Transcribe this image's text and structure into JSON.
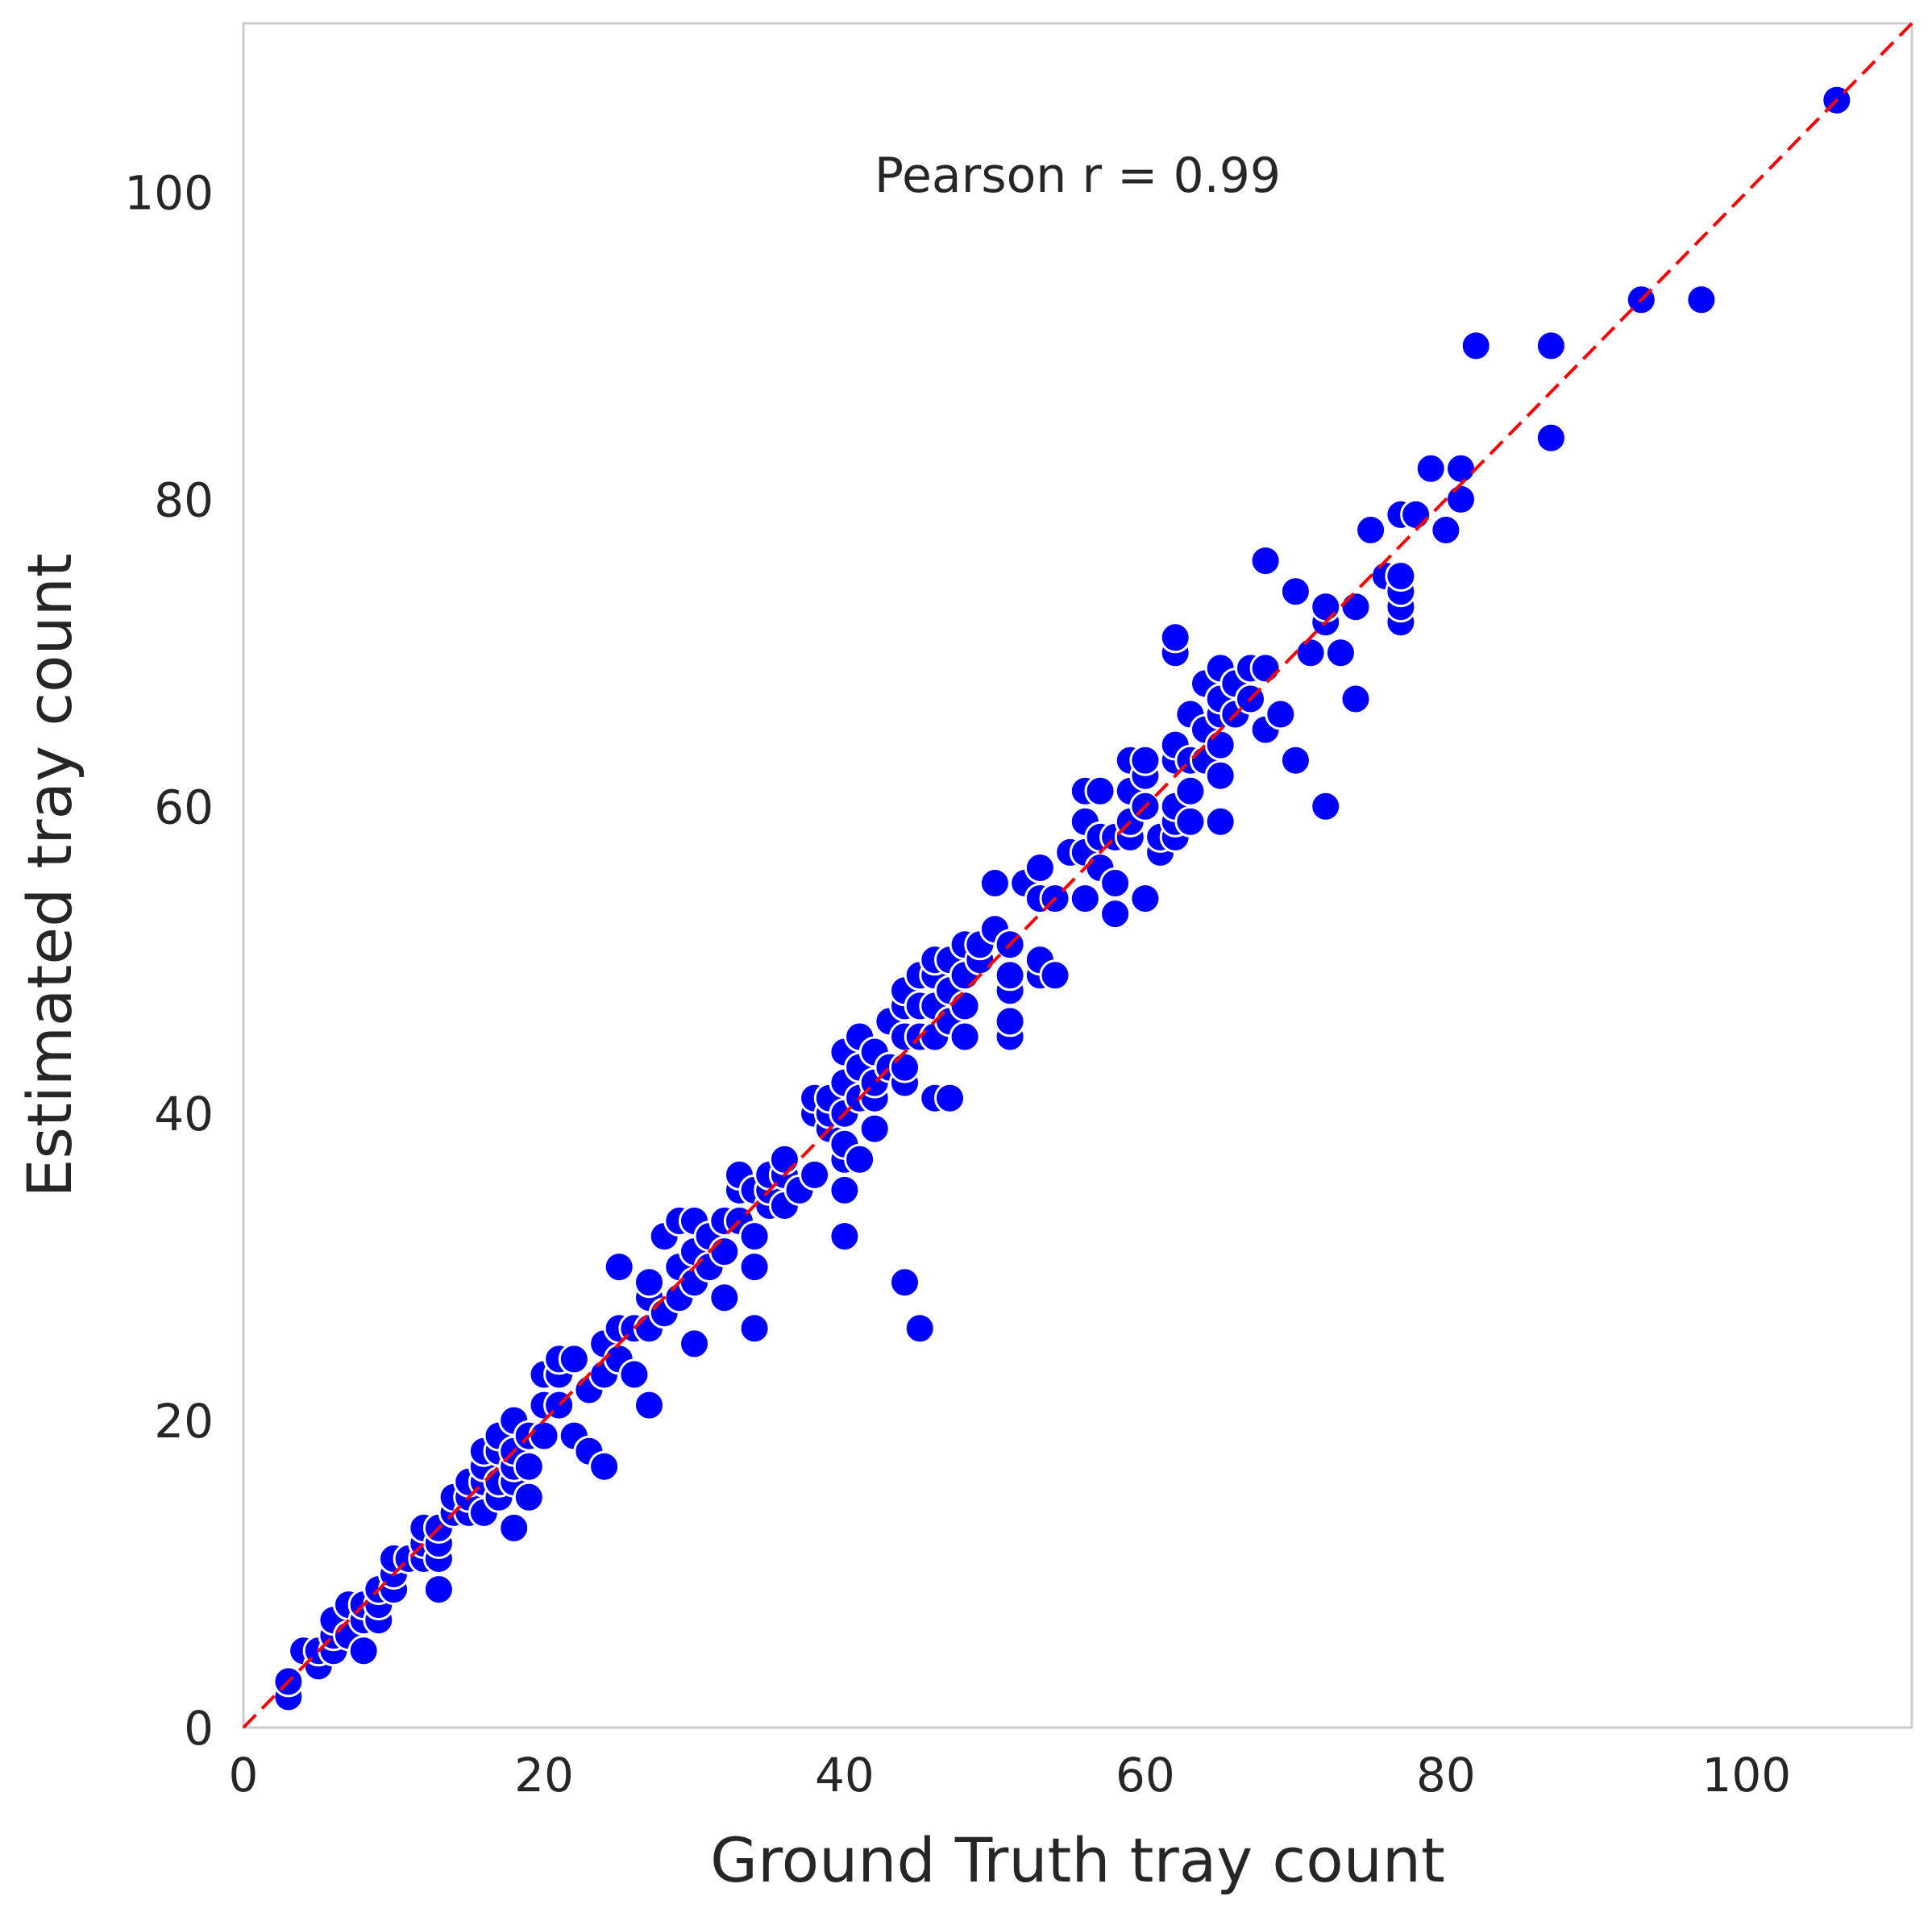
{
  "chart_data": {
    "type": "scatter",
    "xlabel": "Ground Truth tray count",
    "ylabel": "Estimated tray count",
    "annotation": "Pearson r = 0.99",
    "xlim": [
      0,
      111
    ],
    "ylim": [
      0,
      111
    ],
    "xticks": [
      0,
      20,
      40,
      60,
      80,
      100
    ],
    "yticks": [
      0,
      20,
      40,
      60,
      80,
      100
    ],
    "grid": false,
    "colors": {
      "points": "#0000ff",
      "point_edge": "#ffffff",
      "reference_line": "#ff0000",
      "frame": "#cccccc"
    },
    "reference_line": {
      "style": "dashed",
      "from": [
        0,
        0
      ],
      "to": [
        111,
        111
      ]
    },
    "series": [
      {
        "points": [
          [
            3,
            2
          ],
          [
            3,
            3
          ],
          [
            4,
            5
          ],
          [
            5,
            4
          ],
          [
            5,
            5
          ],
          [
            6,
            5
          ],
          [
            6,
            6
          ],
          [
            6,
            7
          ],
          [
            7,
            6
          ],
          [
            7,
            8
          ],
          [
            8,
            5
          ],
          [
            8,
            7
          ],
          [
            8,
            8
          ],
          [
            9,
            7
          ],
          [
            9,
            8
          ],
          [
            9,
            9
          ],
          [
            10,
            9
          ],
          [
            10,
            10
          ],
          [
            10,
            11
          ],
          [
            11,
            11
          ],
          [
            12,
            11
          ],
          [
            12,
            12
          ],
          [
            12,
            13
          ],
          [
            13,
            9
          ],
          [
            13,
            11
          ],
          [
            13,
            12
          ],
          [
            13,
            13
          ],
          [
            14,
            14
          ],
          [
            14,
            15
          ],
          [
            15,
            14
          ],
          [
            15,
            15
          ],
          [
            15,
            16
          ],
          [
            16,
            14
          ],
          [
            16,
            16
          ],
          [
            16,
            17
          ],
          [
            16,
            18
          ],
          [
            17,
            15
          ],
          [
            17,
            16
          ],
          [
            17,
            18
          ],
          [
            17,
            19
          ],
          [
            18,
            13
          ],
          [
            18,
            16
          ],
          [
            18,
            17
          ],
          [
            18,
            18
          ],
          [
            18,
            20
          ],
          [
            19,
            15
          ],
          [
            19,
            17
          ],
          [
            19,
            19
          ],
          [
            20,
            19
          ],
          [
            20,
            21
          ],
          [
            20,
            23
          ],
          [
            21,
            21
          ],
          [
            21,
            23
          ],
          [
            21,
            24
          ],
          [
            22,
            19
          ],
          [
            22,
            24
          ],
          [
            23,
            18
          ],
          [
            23,
            22
          ],
          [
            24,
            17
          ],
          [
            24,
            23
          ],
          [
            24,
            25
          ],
          [
            25,
            24
          ],
          [
            25,
            26
          ],
          [
            25,
            30
          ],
          [
            26,
            23
          ],
          [
            26,
            26
          ],
          [
            27,
            21
          ],
          [
            27,
            26
          ],
          [
            27,
            28
          ],
          [
            27,
            29
          ],
          [
            28,
            27
          ],
          [
            28,
            32
          ],
          [
            29,
            28
          ],
          [
            29,
            30
          ],
          [
            29,
            33
          ],
          [
            30,
            25
          ],
          [
            30,
            29
          ],
          [
            30,
            31
          ],
          [
            30,
            33
          ],
          [
            31,
            30
          ],
          [
            31,
            32
          ],
          [
            32,
            28
          ],
          [
            32,
            31
          ],
          [
            32,
            33
          ],
          [
            33,
            33
          ],
          [
            33,
            35
          ],
          [
            33,
            36
          ],
          [
            34,
            26
          ],
          [
            34,
            30
          ],
          [
            34,
            32
          ],
          [
            34,
            35
          ],
          [
            35,
            34
          ],
          [
            35,
            35
          ],
          [
            35,
            36
          ],
          [
            36,
            34
          ],
          [
            36,
            36
          ],
          [
            36,
            37
          ],
          [
            37,
            35
          ],
          [
            38,
            36
          ],
          [
            38,
            40
          ],
          [
            38,
            41
          ],
          [
            39,
            39
          ],
          [
            39,
            40
          ],
          [
            39,
            41
          ],
          [
            40,
            32
          ],
          [
            40,
            35
          ],
          [
            40,
            37
          ],
          [
            40,
            38
          ],
          [
            40,
            40
          ],
          [
            40,
            42
          ],
          [
            40,
            44
          ],
          [
            41,
            37
          ],
          [
            41,
            41
          ],
          [
            41,
            43
          ],
          [
            41,
            45
          ],
          [
            42,
            39
          ],
          [
            42,
            41
          ],
          [
            42,
            42
          ],
          [
            42,
            44
          ],
          [
            43,
            43
          ],
          [
            43,
            46
          ],
          [
            44,
            29
          ],
          [
            44,
            42
          ],
          [
            44,
            43
          ],
          [
            44,
            45
          ],
          [
            44,
            47
          ],
          [
            44,
            48
          ],
          [
            45,
            26
          ],
          [
            45,
            45
          ],
          [
            45,
            47
          ],
          [
            45,
            49
          ],
          [
            46,
            41
          ],
          [
            46,
            45
          ],
          [
            46,
            47
          ],
          [
            46,
            49
          ],
          [
            46,
            50
          ],
          [
            47,
            41
          ],
          [
            47,
            46
          ],
          [
            47,
            48
          ],
          [
            47,
            50
          ],
          [
            48,
            45
          ],
          [
            48,
            47
          ],
          [
            48,
            49
          ],
          [
            48,
            51
          ],
          [
            49,
            50
          ],
          [
            49,
            51
          ],
          [
            50,
            52
          ],
          [
            50,
            55
          ],
          [
            51,
            45
          ],
          [
            51,
            46
          ],
          [
            51,
            48
          ],
          [
            51,
            49
          ],
          [
            51,
            51
          ],
          [
            52,
            55
          ],
          [
            53,
            49
          ],
          [
            53,
            50
          ],
          [
            53,
            54
          ],
          [
            53,
            56
          ],
          [
            54,
            49
          ],
          [
            54,
            54
          ],
          [
            55,
            57
          ],
          [
            56,
            54
          ],
          [
            56,
            57
          ],
          [
            56,
            59
          ],
          [
            56,
            61
          ],
          [
            57,
            56
          ],
          [
            57,
            58
          ],
          [
            57,
            61
          ],
          [
            58,
            53
          ],
          [
            58,
            55
          ],
          [
            58,
            58
          ],
          [
            59,
            58
          ],
          [
            59,
            59
          ],
          [
            59,
            61
          ],
          [
            59,
            63
          ],
          [
            60,
            54
          ],
          [
            60,
            60
          ],
          [
            60,
            62
          ],
          [
            60,
            63
          ],
          [
            61,
            57
          ],
          [
            61,
            58
          ],
          [
            62,
            58
          ],
          [
            62,
            59
          ],
          [
            62,
            60
          ],
          [
            62,
            63
          ],
          [
            62,
            64
          ],
          [
            62,
            70
          ],
          [
            62,
            71
          ],
          [
            63,
            59
          ],
          [
            63,
            61
          ],
          [
            63,
            63
          ],
          [
            63,
            66
          ],
          [
            64,
            63
          ],
          [
            64,
            65
          ],
          [
            64,
            68
          ],
          [
            65,
            59
          ],
          [
            65,
            62
          ],
          [
            65,
            64
          ],
          [
            65,
            66
          ],
          [
            65,
            67
          ],
          [
            65,
            69
          ],
          [
            66,
            66
          ],
          [
            66,
            68
          ],
          [
            67,
            67
          ],
          [
            67,
            69
          ],
          [
            68,
            65
          ],
          [
            68,
            69
          ],
          [
            68,
            76
          ],
          [
            69,
            66
          ],
          [
            70,
            63
          ],
          [
            70,
            74
          ],
          [
            71,
            70
          ],
          [
            72,
            60
          ],
          [
            72,
            72
          ],
          [
            72,
            73
          ],
          [
            73,
            70
          ],
          [
            74,
            67
          ],
          [
            74,
            73
          ],
          [
            75,
            78
          ],
          [
            76,
            75
          ],
          [
            77,
            72
          ],
          [
            77,
            73
          ],
          [
            77,
            74
          ],
          [
            77,
            75
          ],
          [
            77,
            79
          ],
          [
            78,
            79
          ],
          [
            79,
            82
          ],
          [
            80,
            78
          ],
          [
            81,
            80
          ],
          [
            81,
            82
          ],
          [
            82,
            90
          ],
          [
            87,
            84
          ],
          [
            87,
            90
          ],
          [
            93,
            93
          ],
          [
            97,
            93
          ],
          [
            106,
            106
          ]
        ]
      }
    ]
  }
}
